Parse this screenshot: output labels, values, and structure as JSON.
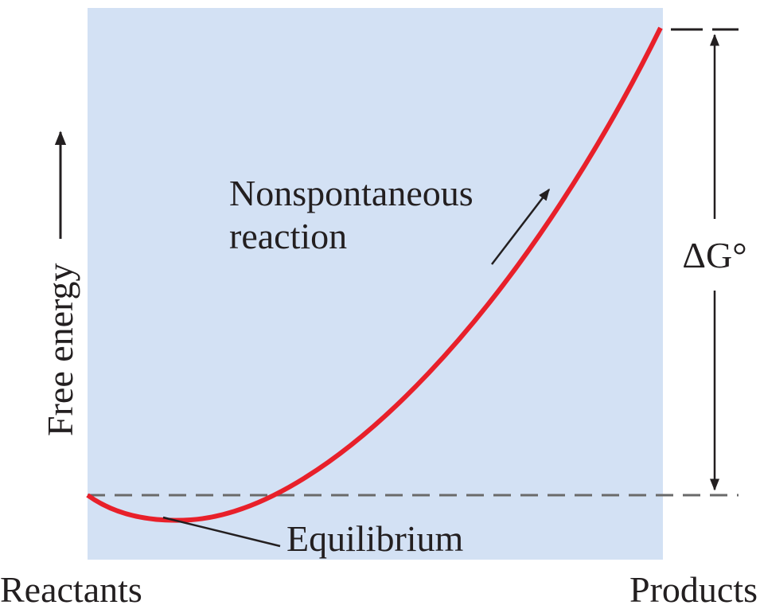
{
  "y_axis_label": "Free energy",
  "annotation": {
    "line1": "Nonspontaneous",
    "line2": "reaction"
  },
  "delta_label": "ΔG°",
  "equilibrium_label": "Equilibrium",
  "x_left_label": "Reactants",
  "x_right_label": "Products"
}
